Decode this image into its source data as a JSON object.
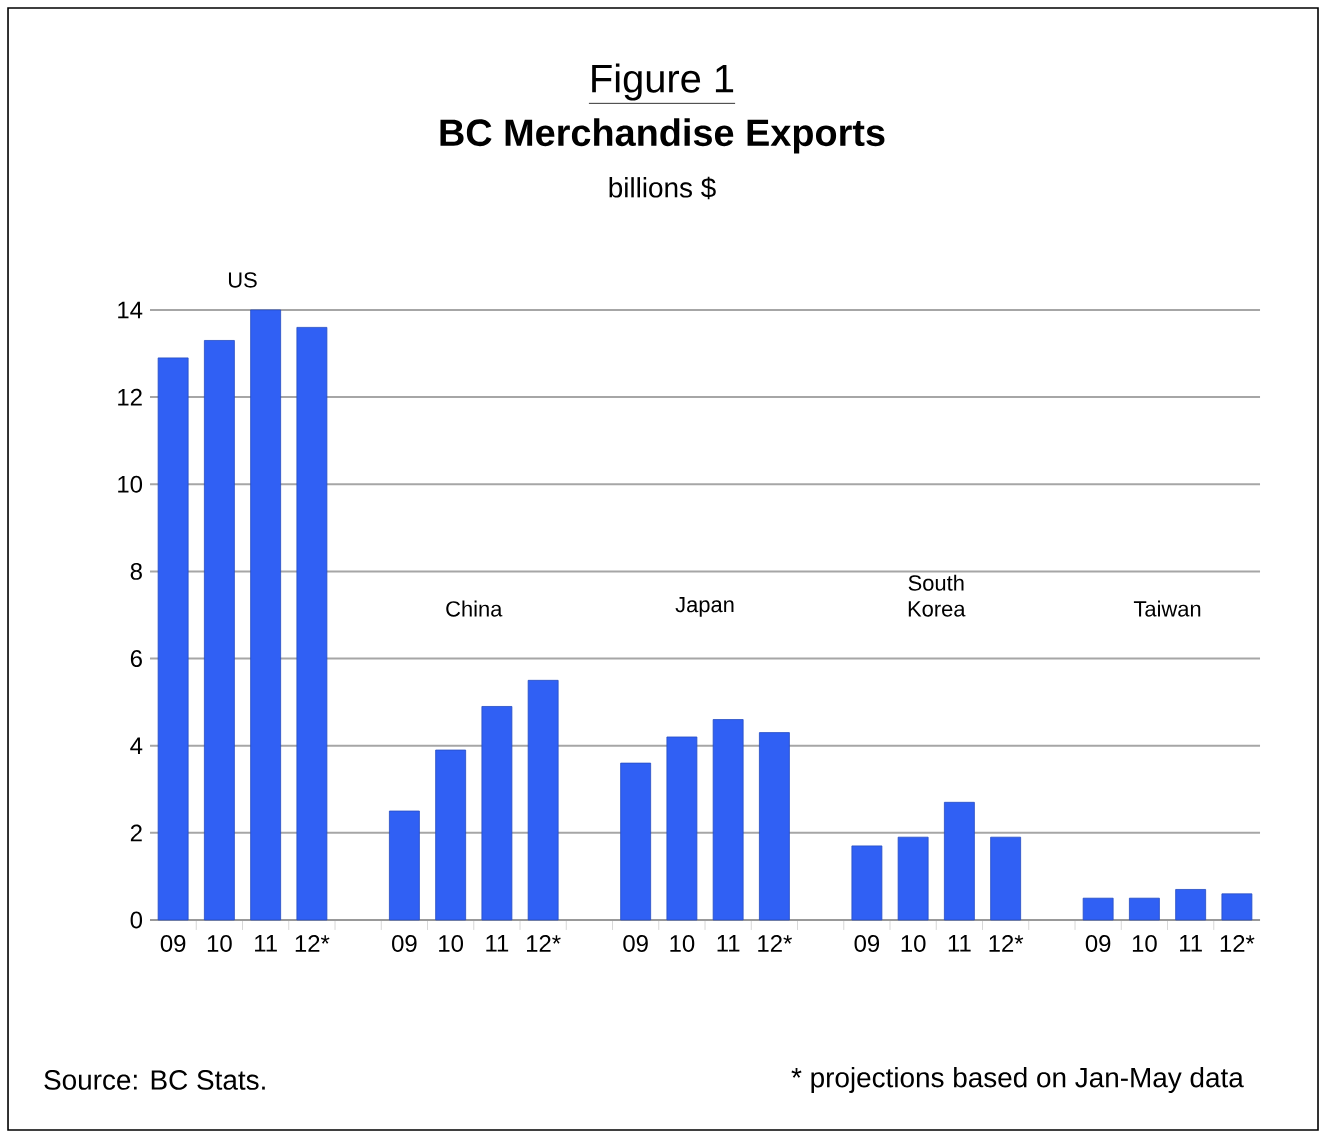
{
  "chart_data": {
    "type": "bar",
    "title": "BC Merchandise Exports",
    "ylabel": "billions $",
    "categories": [
      "09",
      "10",
      "11",
      "12*",
      null,
      "09",
      "10",
      "11",
      "12*",
      null,
      "09",
      "10",
      "11",
      "12*",
      null,
      "09",
      "10",
      "11",
      "12*",
      null,
      "09",
      "10",
      "11",
      "12*"
    ],
    "values": [
      12.9,
      13.3,
      14.0,
      13.6,
      null,
      2.5,
      3.9,
      4.9,
      5.5,
      null,
      3.6,
      4.2,
      4.6,
      4.3,
      null,
      1.7,
      1.9,
      2.7,
      1.9,
      null,
      0.5,
      0.5,
      0.7,
      0.6
    ],
    "color": "#3060f4",
    "ylim": [
      0,
      14
    ],
    "yticks": [
      0,
      2,
      4,
      6,
      8,
      10,
      12,
      14
    ],
    "grid": "y",
    "annotations": [
      "US",
      "China",
      "Japan",
      "South Korea",
      "Taiwan",
      "Figure 1",
      "Source: BC Stats.",
      "* projections based on Jan-May data"
    ]
  }
}
